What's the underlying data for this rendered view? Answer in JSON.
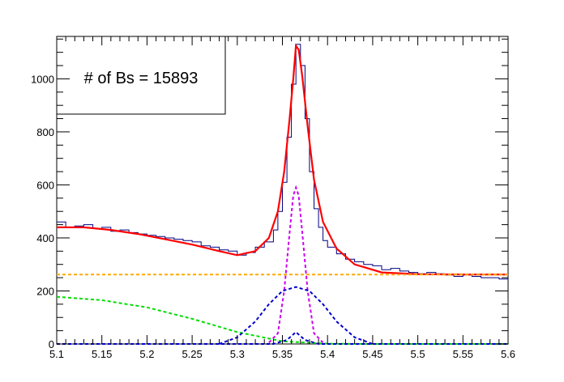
{
  "chart_data": {
    "type": "line",
    "stats_box_text": "# of Bs = 15893",
    "xlim": [
      5.1,
      5.6
    ],
    "ylim": [
      0,
      1160
    ],
    "grid": false,
    "legend": "none",
    "x_ticks": [
      5.1,
      5.15,
      5.2,
      5.25,
      5.3,
      5.35,
      5.4,
      5.45,
      5.5,
      5.55,
      5.6
    ],
    "x_tick_labels": [
      "5.1",
      "5.15",
      "5.2",
      "5.25",
      "5.3",
      "5.35",
      "5.4",
      "5.45",
      "5.5",
      "5.55",
      "5.6"
    ],
    "y_ticks": [
      0,
      200,
      400,
      600,
      800,
      1000
    ],
    "y_tick_labels": [
      "0",
      "200",
      "400",
      "600",
      "800",
      "1000"
    ],
    "series": [
      {
        "style": "histogram",
        "color": "#000080",
        "x": [
          5.1,
          5.11,
          5.12,
          5.13,
          5.14,
          5.15,
          5.16,
          5.17,
          5.18,
          5.19,
          5.2,
          5.21,
          5.22,
          5.23,
          5.24,
          5.25,
          5.26,
          5.27,
          5.28,
          5.29,
          5.3,
          5.31,
          5.32,
          5.33,
          5.34,
          5.345,
          5.35,
          5.355,
          5.36,
          5.365,
          5.37,
          5.375,
          5.38,
          5.385,
          5.39,
          5.395,
          5.4,
          5.41,
          5.42,
          5.43,
          5.44,
          5.45,
          5.46,
          5.47,
          5.48,
          5.49,
          5.5,
          5.51,
          5.52,
          5.53,
          5.54,
          5.55,
          5.56,
          5.57,
          5.58,
          5.59,
          5.6
        ],
        "y": [
          460,
          440,
          445,
          450,
          435,
          440,
          425,
          430,
          420,
          415,
          410,
          405,
          400,
          395,
          390,
          385,
          370,
          365,
          355,
          350,
          335,
          345,
          365,
          385,
          430,
          500,
          610,
          780,
          980,
          1130,
          1050,
          850,
          650,
          510,
          440,
          390,
          365,
          340,
          320,
          310,
          300,
          295,
          280,
          285,
          275,
          270,
          265,
          270,
          265,
          260,
          255,
          260,
          255,
          250,
          250,
          245,
          240
        ]
      },
      {
        "style": "solid",
        "color": "#ff0000",
        "x": [
          5.1,
          5.13,
          5.16,
          5.19,
          5.22,
          5.25,
          5.28,
          5.3,
          5.32,
          5.335,
          5.345,
          5.352,
          5.358,
          5.362,
          5.365,
          5.368,
          5.372,
          5.378,
          5.385,
          5.395,
          5.41,
          5.43,
          5.46,
          5.5,
          5.55,
          5.6
        ],
        "y": [
          440,
          440,
          430,
          415,
          395,
          375,
          350,
          335,
          350,
          400,
          500,
          650,
          850,
          1000,
          1125,
          1110,
          1010,
          820,
          620,
          460,
          360,
          300,
          270,
          263,
          262,
          262
        ]
      },
      {
        "style": "dashed",
        "color": "#ffaa00",
        "x": [
          5.1,
          5.6
        ],
        "y": [
          262,
          262
        ]
      },
      {
        "style": "dashed",
        "color": "#00dd00",
        "x": [
          5.1,
          5.15,
          5.2,
          5.25,
          5.3,
          5.35,
          5.4,
          5.45,
          5.5,
          5.6
        ],
        "y": [
          178,
          165,
          138,
          95,
          45,
          10,
          1,
          0,
          0,
          0
        ]
      },
      {
        "style": "dashed",
        "color": "#cc00ee",
        "x": [
          5.335,
          5.345,
          5.352,
          5.358,
          5.362,
          5.365,
          5.368,
          5.372,
          5.378,
          5.385,
          5.395
        ],
        "y": [
          5,
          40,
          200,
          420,
          560,
          590,
          560,
          420,
          200,
          40,
          5
        ]
      },
      {
        "style": "dashed",
        "color": "#0000cc",
        "x": [
          5.28,
          5.3,
          5.32,
          5.335,
          5.35,
          5.365,
          5.38,
          5.395,
          5.41,
          5.43,
          5.45
        ],
        "y": [
          0,
          25,
          85,
          150,
          200,
          215,
          200,
          150,
          85,
          25,
          0
        ]
      },
      {
        "style": "dashed",
        "color": "#0000cc",
        "x": [
          5.1,
          5.34,
          5.355,
          5.365,
          5.375,
          5.39,
          5.6
        ],
        "y": [
          0,
          0,
          15,
          45,
          15,
          0,
          0
        ]
      }
    ]
  }
}
